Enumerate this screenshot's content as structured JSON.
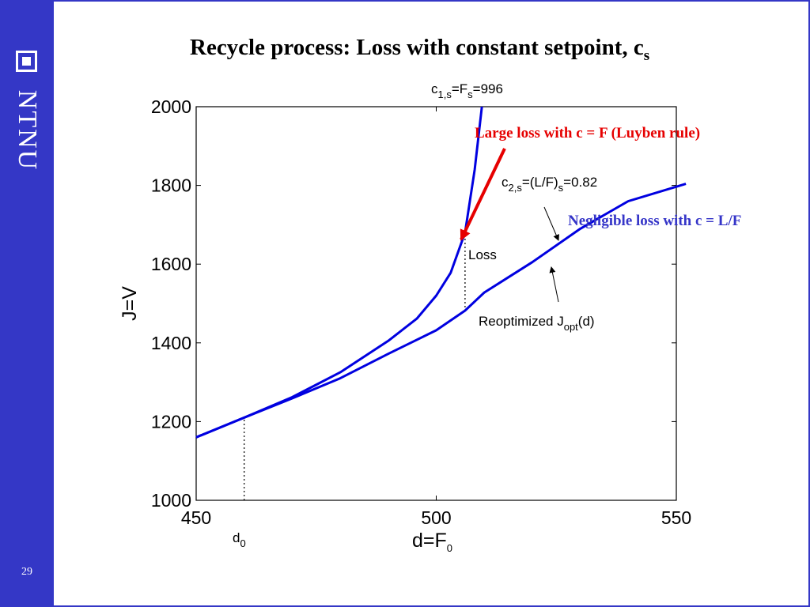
{
  "sidebar": {
    "logo_text": "NTNU",
    "page_number": "29"
  },
  "slide": {
    "title_main": "Recycle process: Loss with constant setpoint, c",
    "title_sub": "s"
  },
  "colors": {
    "sidebar": "#3437c6",
    "curve": "#0000e0",
    "red_arrow": "#e60000",
    "blue_text": "#3535c8"
  },
  "chart_data": {
    "type": "line",
    "xlabel": "d=F",
    "xlabel_sub": "0",
    "ylabel": "J=V",
    "xlim": [
      450,
      550
    ],
    "ylim": [
      1000,
      2000
    ],
    "xticks": [
      450,
      500,
      550
    ],
    "yticks": [
      1000,
      1200,
      1400,
      1600,
      1800,
      2000
    ],
    "grid": false,
    "series": [
      {
        "values": [
          [
            450,
            1160
          ],
          [
            460,
            1210
          ],
          [
            470,
            1262
          ],
          [
            480,
            1325
          ],
          [
            490,
            1405
          ],
          [
            496,
            1462
          ],
          [
            500,
            1520
          ],
          [
            503,
            1578
          ],
          [
            506,
            1680
          ],
          [
            508,
            1840
          ],
          [
            509.5,
            2000
          ]
        ]
      },
      {
        "values": [
          [
            450,
            1160
          ],
          [
            460,
            1210
          ],
          [
            470,
            1259
          ],
          [
            480,
            1310
          ],
          [
            490,
            1372
          ],
          [
            500,
            1432
          ],
          [
            506,
            1482
          ],
          [
            510,
            1528
          ],
          [
            520,
            1605
          ],
          [
            530,
            1690
          ],
          [
            540,
            1760
          ],
          [
            552,
            1804
          ]
        ]
      }
    ],
    "vlines": [
      {
        "x": 460,
        "y_from": 1000,
        "y_to": 1212
      },
      {
        "x": 506,
        "y_from": 1490,
        "y_to": 1690
      }
    ],
    "annotations": {
      "d0_main": "d",
      "d0_sub": "0",
      "c1_prefix": "c",
      "c1_sub": "1,s",
      "c1_mid": "=F",
      "c1_sub2": "s",
      "c1_suffix": "=996",
      "c2_prefix": "c",
      "c2_sub": "2,s",
      "c2_mid": "=(L/F)",
      "c2_sub2": "s",
      "c2_suffix": "=0.82",
      "loss": "Loss",
      "reopt_prefix": "Reoptimized J",
      "reopt_sub": "opt",
      "reopt_suffix": "(d)",
      "red_text": "Large loss with c = F (Luyben rule)",
      "blue_text": "Negligible loss with c = L/F"
    }
  }
}
